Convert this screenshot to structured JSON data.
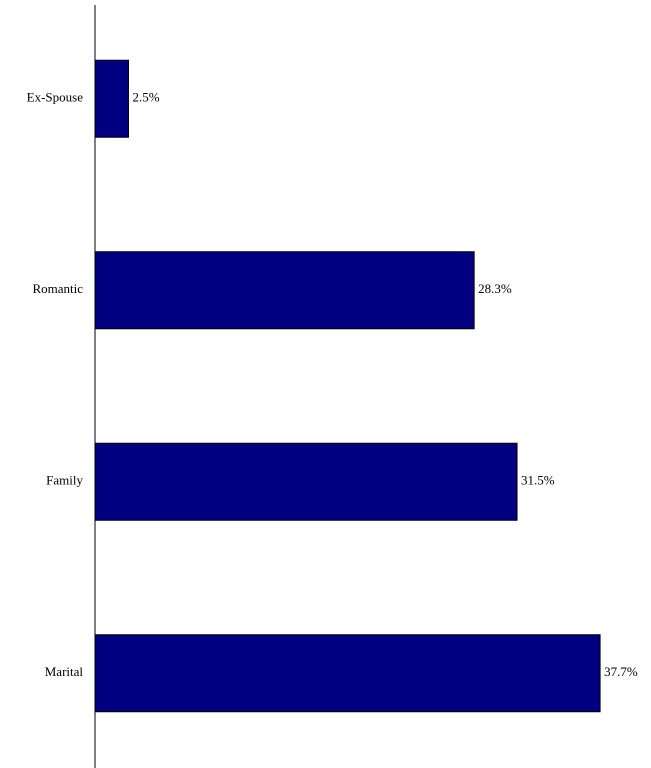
{
  "chart_data": {
    "type": "hbar",
    "categories": [
      "Ex-Spouse",
      "Romantic",
      "Family",
      "Marital"
    ],
    "values": [
      2.5,
      28.3,
      31.5,
      37.7
    ],
    "value_labels": [
      "2.5%",
      "28.3%",
      "31.5%",
      "37.7%"
    ],
    "color": "#000080",
    "xlim": [
      0,
      41.5
    ]
  }
}
